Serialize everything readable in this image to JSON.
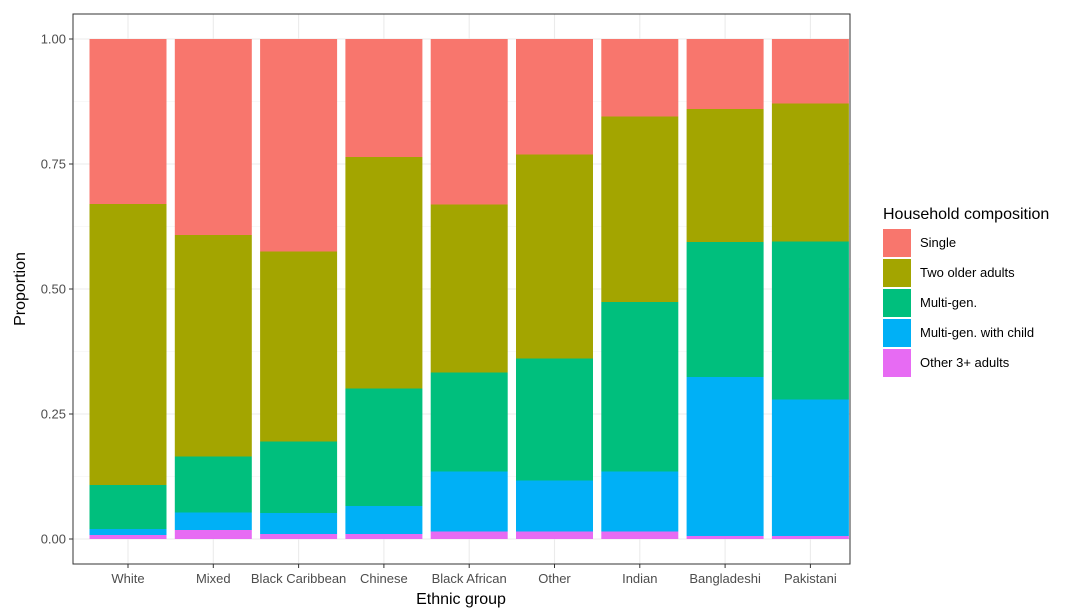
{
  "chart_data": {
    "type": "bar",
    "stacked": true,
    "xlabel": "Ethnic group",
    "ylabel": "Proportion",
    "ylim": [
      0,
      1
    ],
    "yticks": [
      0,
      0.25,
      0.5,
      0.75,
      1
    ],
    "ytick_labels": [
      "0.00",
      "0.25",
      "0.50",
      "0.75",
      "1.00"
    ],
    "grid": true,
    "categories": [
      "White",
      "Mixed",
      "Black Caribbean",
      "Chinese",
      "Black African",
      "Other",
      "Indian",
      "Bangladeshi",
      "Pakistani"
    ],
    "legend": {
      "title": "Household composition",
      "position": "right",
      "entries": [
        "Single",
        "Two older adults",
        "Multi-gen.",
        "Multi-gen. with child",
        "Other 3+ adults"
      ]
    },
    "series": [
      {
        "name": "Other 3+ adults",
        "color": "#E76BF3",
        "values": [
          0.008,
          0.018,
          0.01,
          0.01,
          0.015,
          0.015,
          0.015,
          0.006,
          0.006
        ]
      },
      {
        "name": "Multi-gen. with child",
        "color": "#00B0F6",
        "values": [
          0.012,
          0.035,
          0.042,
          0.056,
          0.12,
          0.102,
          0.12,
          0.318,
          0.273
        ]
      },
      {
        "name": "Multi-gen.",
        "color": "#00BF7D",
        "values": [
          0.088,
          0.112,
          0.143,
          0.235,
          0.198,
          0.244,
          0.339,
          0.27,
          0.316
        ]
      },
      {
        "name": "Two older adults",
        "color": "#A3A500",
        "values": [
          0.562,
          0.443,
          0.38,
          0.463,
          0.336,
          0.408,
          0.371,
          0.266,
          0.276
        ]
      },
      {
        "name": "Single",
        "color": "#F8766D",
        "values": [
          0.33,
          0.392,
          0.425,
          0.236,
          0.331,
          0.231,
          0.155,
          0.14,
          0.129
        ]
      }
    ]
  }
}
